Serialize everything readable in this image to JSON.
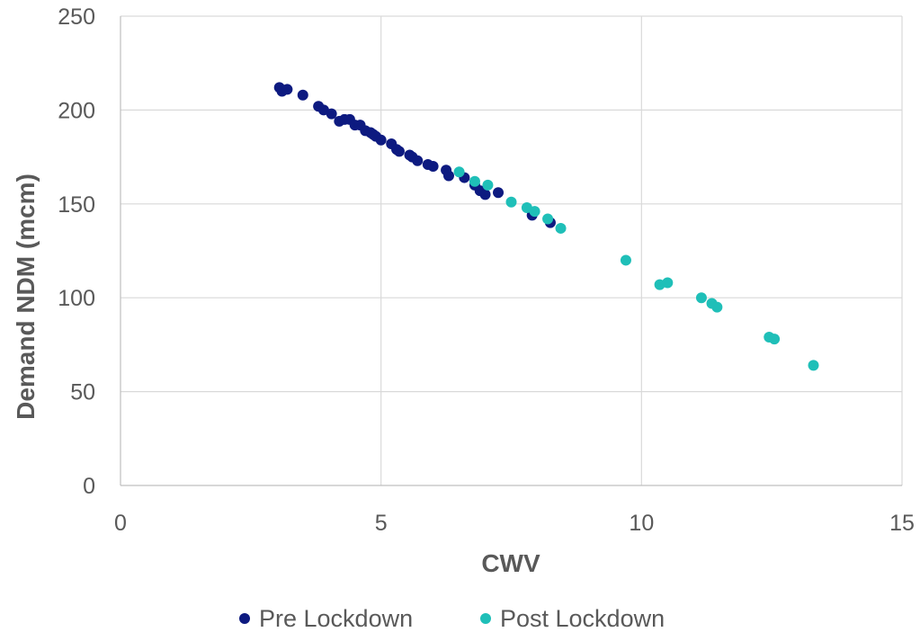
{
  "chart_data": {
    "type": "scatter",
    "title": "",
    "xlabel": "CWV",
    "ylabel": "Demand NDM (mcm)",
    "xlim": [
      0,
      15
    ],
    "ylim": [
      0,
      250
    ],
    "xticks": [
      0,
      5,
      10,
      15
    ],
    "yticks": [
      0,
      50,
      100,
      150,
      200,
      250
    ],
    "grid": true,
    "legend": "bottom",
    "series": [
      {
        "name": "Pre Lockdown",
        "color": "#0d1a80",
        "points": [
          [
            3.05,
            212
          ],
          [
            3.1,
            210
          ],
          [
            3.2,
            211
          ],
          [
            3.5,
            208
          ],
          [
            3.8,
            202
          ],
          [
            3.9,
            200
          ],
          [
            4.05,
            198
          ],
          [
            4.2,
            194
          ],
          [
            4.3,
            195
          ],
          [
            4.4,
            195
          ],
          [
            4.5,
            192
          ],
          [
            4.6,
            192
          ],
          [
            4.7,
            189
          ],
          [
            4.8,
            188
          ],
          [
            4.85,
            187
          ],
          [
            4.9,
            186
          ],
          [
            5.0,
            184
          ],
          [
            5.2,
            182
          ],
          [
            5.3,
            179
          ],
          [
            5.35,
            178
          ],
          [
            5.55,
            176
          ],
          [
            5.6,
            175
          ],
          [
            5.7,
            173
          ],
          [
            5.9,
            171
          ],
          [
            6.0,
            170
          ],
          [
            6.25,
            168
          ],
          [
            6.3,
            165
          ],
          [
            6.6,
            164
          ],
          [
            6.8,
            160
          ],
          [
            6.9,
            157
          ],
          [
            7.0,
            155
          ],
          [
            7.25,
            156
          ],
          [
            7.9,
            144
          ],
          [
            8.25,
            140
          ]
        ]
      },
      {
        "name": "Post Lockdown",
        "color": "#1fbfb8",
        "points": [
          [
            6.5,
            167
          ],
          [
            6.8,
            162
          ],
          [
            7.05,
            160
          ],
          [
            7.5,
            151
          ],
          [
            7.8,
            148
          ],
          [
            7.95,
            146
          ],
          [
            8.2,
            142
          ],
          [
            8.45,
            137
          ],
          [
            9.7,
            120
          ],
          [
            10.35,
            107
          ],
          [
            10.5,
            108
          ],
          [
            11.15,
            100
          ],
          [
            11.35,
            97
          ],
          [
            11.45,
            95
          ],
          [
            12.45,
            79
          ],
          [
            12.55,
            78
          ],
          [
            13.3,
            64
          ]
        ]
      }
    ]
  }
}
